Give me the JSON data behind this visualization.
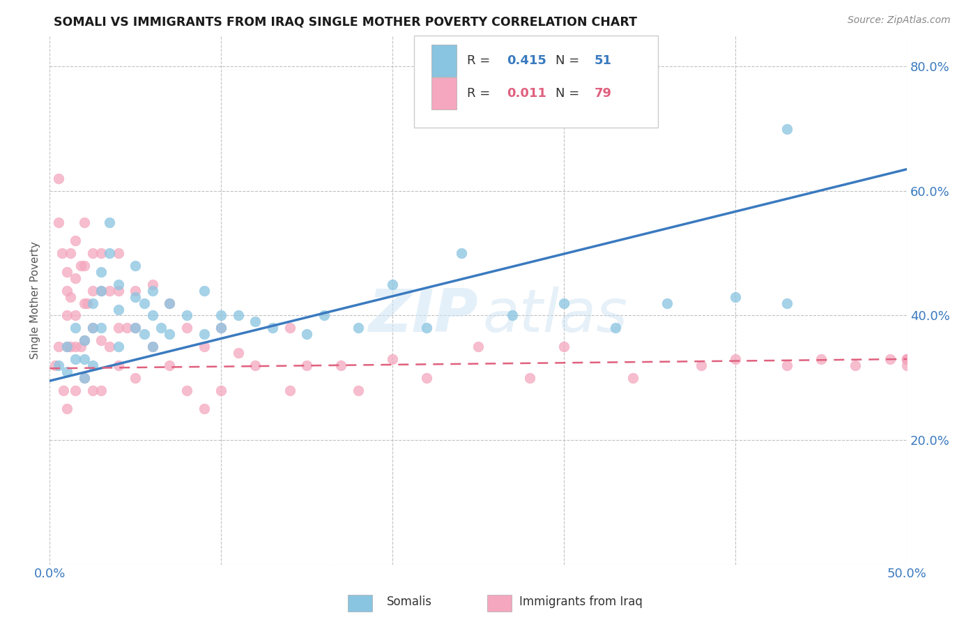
{
  "title": "SOMALI VS IMMIGRANTS FROM IRAQ SINGLE MOTHER POVERTY CORRELATION CHART",
  "source": "Source: ZipAtlas.com",
  "xlabel_somali": "Somalis",
  "xlabel_iraq": "Immigrants from Iraq",
  "ylabel": "Single Mother Poverty",
  "xlim": [
    0.0,
    0.5
  ],
  "ylim": [
    0.0,
    0.85
  ],
  "x_ticks": [
    0.0,
    0.1,
    0.2,
    0.3,
    0.4,
    0.5
  ],
  "x_tick_labels": [
    "0.0%",
    "",
    "",
    "",
    "",
    "50.0%"
  ],
  "y_ticks": [
    0.0,
    0.2,
    0.4,
    0.6,
    0.8
  ],
  "y_tick_labels": [
    "",
    "20.0%",
    "40.0%",
    "60.0%",
    "80.0%"
  ],
  "somali_R": "0.415",
  "somali_N": "51",
  "iraq_R": "0.011",
  "iraq_N": "79",
  "somali_color": "#89c4e1",
  "iraq_color": "#f4a7be",
  "somali_line_color": "#3a7abf",
  "iraq_line_color": "#e0607e",
  "watermark_zip": "ZIP",
  "watermark_atlas": "atlas",
  "somali_line_x0": 0.0,
  "somali_line_y0": 0.295,
  "somali_line_x1": 0.5,
  "somali_line_y1": 0.635,
  "iraq_line_x0": 0.0,
  "iraq_line_y0": 0.315,
  "iraq_line_x1": 0.5,
  "iraq_line_y1": 0.33,
  "somali_scatter_x": [
    0.005,
    0.01,
    0.01,
    0.015,
    0.015,
    0.02,
    0.02,
    0.02,
    0.025,
    0.025,
    0.025,
    0.03,
    0.03,
    0.03,
    0.035,
    0.035,
    0.04,
    0.04,
    0.04,
    0.05,
    0.05,
    0.05,
    0.055,
    0.055,
    0.06,
    0.06,
    0.06,
    0.065,
    0.07,
    0.07,
    0.08,
    0.09,
    0.09,
    0.1,
    0.1,
    0.11,
    0.12,
    0.13,
    0.15,
    0.16,
    0.18,
    0.2,
    0.22,
    0.24,
    0.27,
    0.3,
    0.33,
    0.36,
    0.4,
    0.43,
    0.43
  ],
  "somali_scatter_y": [
    0.32,
    0.31,
    0.35,
    0.38,
    0.33,
    0.36,
    0.33,
    0.3,
    0.42,
    0.38,
    0.32,
    0.47,
    0.44,
    0.38,
    0.5,
    0.55,
    0.45,
    0.41,
    0.35,
    0.48,
    0.43,
    0.38,
    0.42,
    0.37,
    0.44,
    0.4,
    0.35,
    0.38,
    0.42,
    0.37,
    0.4,
    0.44,
    0.37,
    0.4,
    0.38,
    0.4,
    0.39,
    0.38,
    0.37,
    0.4,
    0.38,
    0.45,
    0.38,
    0.5,
    0.4,
    0.42,
    0.38,
    0.42,
    0.43,
    0.7,
    0.42
  ],
  "iraq_scatter_x": [
    0.003,
    0.005,
    0.005,
    0.005,
    0.007,
    0.008,
    0.01,
    0.01,
    0.01,
    0.01,
    0.01,
    0.012,
    0.012,
    0.012,
    0.015,
    0.015,
    0.015,
    0.015,
    0.015,
    0.018,
    0.018,
    0.02,
    0.02,
    0.02,
    0.02,
    0.02,
    0.022,
    0.025,
    0.025,
    0.025,
    0.025,
    0.03,
    0.03,
    0.03,
    0.03,
    0.035,
    0.035,
    0.04,
    0.04,
    0.04,
    0.04,
    0.045,
    0.05,
    0.05,
    0.05,
    0.06,
    0.06,
    0.07,
    0.07,
    0.08,
    0.08,
    0.09,
    0.09,
    0.1,
    0.1,
    0.11,
    0.12,
    0.14,
    0.14,
    0.15,
    0.17,
    0.18,
    0.2,
    0.22,
    0.25,
    0.28,
    0.3,
    0.34,
    0.38,
    0.4,
    0.43,
    0.45,
    0.47,
    0.49,
    0.5,
    0.5,
    0.5,
    0.5,
    0.5
  ],
  "iraq_scatter_y": [
    0.32,
    0.62,
    0.55,
    0.35,
    0.5,
    0.28,
    0.47,
    0.44,
    0.4,
    0.35,
    0.25,
    0.5,
    0.43,
    0.35,
    0.52,
    0.46,
    0.4,
    0.35,
    0.28,
    0.48,
    0.35,
    0.55,
    0.48,
    0.42,
    0.36,
    0.3,
    0.42,
    0.5,
    0.44,
    0.38,
    0.28,
    0.5,
    0.44,
    0.36,
    0.28,
    0.44,
    0.35,
    0.5,
    0.44,
    0.38,
    0.32,
    0.38,
    0.44,
    0.38,
    0.3,
    0.45,
    0.35,
    0.42,
    0.32,
    0.38,
    0.28,
    0.35,
    0.25,
    0.38,
    0.28,
    0.34,
    0.32,
    0.38,
    0.28,
    0.32,
    0.32,
    0.28,
    0.33,
    0.3,
    0.35,
    0.3,
    0.35,
    0.3,
    0.32,
    0.33,
    0.32,
    0.33,
    0.32,
    0.33,
    0.33,
    0.32,
    0.33,
    0.33,
    0.33
  ]
}
